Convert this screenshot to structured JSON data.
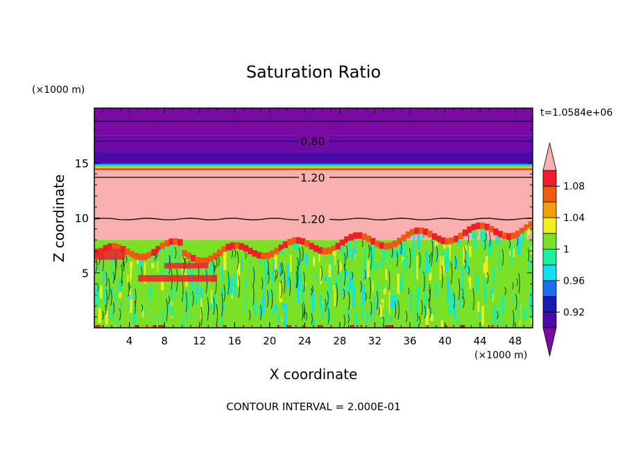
{
  "chart_data": {
    "type": "heatmap",
    "title": "Saturation Ratio",
    "xlabel": "X coordinate",
    "ylabel": "Z coordinate",
    "x_unit": "(×1000 m)",
    "y_unit": "(×1000 m)",
    "time_label": "t=1.0584e+06",
    "footer": "CONTOUR INTERVAL = 2.000E-01",
    "xlim": [
      0,
      50
    ],
    "ylim": [
      0,
      20
    ],
    "x_ticks": [
      4,
      8,
      12,
      16,
      20,
      24,
      28,
      32,
      36,
      40,
      44,
      48
    ],
    "y_ticks": [
      5,
      10,
      15
    ],
    "grid": false,
    "colorbar": {
      "placement": "right",
      "tick_labels": [
        "0.92",
        "0.96",
        "1",
        "1.04",
        "1.08"
      ],
      "tick_values": [
        0.92,
        0.96,
        1.0,
        1.04,
        1.08
      ],
      "levels": [
        {
          "min": 0.9,
          "max": 0.92,
          "color": "#4b0aa8"
        },
        {
          "min": 0.92,
          "max": 0.94,
          "color": "#1a1ab4"
        },
        {
          "min": 0.94,
          "max": 0.96,
          "color": "#1e6ef0"
        },
        {
          "min": 0.96,
          "max": 0.98,
          "color": "#10e0f0"
        },
        {
          "min": 0.98,
          "max": 1.0,
          "color": "#1ef0a0"
        },
        {
          "min": 1.0,
          "max": 1.02,
          "color": "#7ae028"
        },
        {
          "min": 1.02,
          "max": 1.04,
          "color": "#f0f01e"
        },
        {
          "min": 1.04,
          "max": 1.06,
          "color": "#f0a00a"
        },
        {
          "min": 1.06,
          "max": 1.08,
          "color": "#f05a10"
        },
        {
          "min": 1.08,
          "max": 1.1,
          "color": "#f01e28"
        }
      ],
      "under_color": "#7a0aa4",
      "over_color": "#fab0ae"
    },
    "layers": [
      {
        "z_min": 17.5,
        "z_max": 20.0,
        "value": "< 0.90",
        "color": "#7a0aa4"
      },
      {
        "z_min": 16.0,
        "z_max": 17.5,
        "value": "< 0.90",
        "color": "#6a0aa8"
      },
      {
        "z_min": 15.0,
        "z_max": 16.0,
        "value": "0.90-0.92",
        "color": "#4b0aa8"
      },
      {
        "z_min": 14.4,
        "z_max": 15.0,
        "value": "0.92-1.08",
        "color": "#1e6ef0"
      },
      {
        "z_min": 8.0,
        "z_max": 14.4,
        "value": "> 1.10",
        "color": "#fab0ae"
      },
      {
        "z_min": 0.0,
        "z_max": 8.0,
        "value": "0.98-1.10",
        "color": "#7ae028"
      }
    ],
    "contour_labels": [
      {
        "value": "0.80",
        "x": 23.5,
        "z": 17.0
      },
      {
        "value": "1.20",
        "x": 23.5,
        "z": 13.7
      },
      {
        "value": "1.20",
        "x": 23.5,
        "z": 9.9
      }
    ]
  }
}
